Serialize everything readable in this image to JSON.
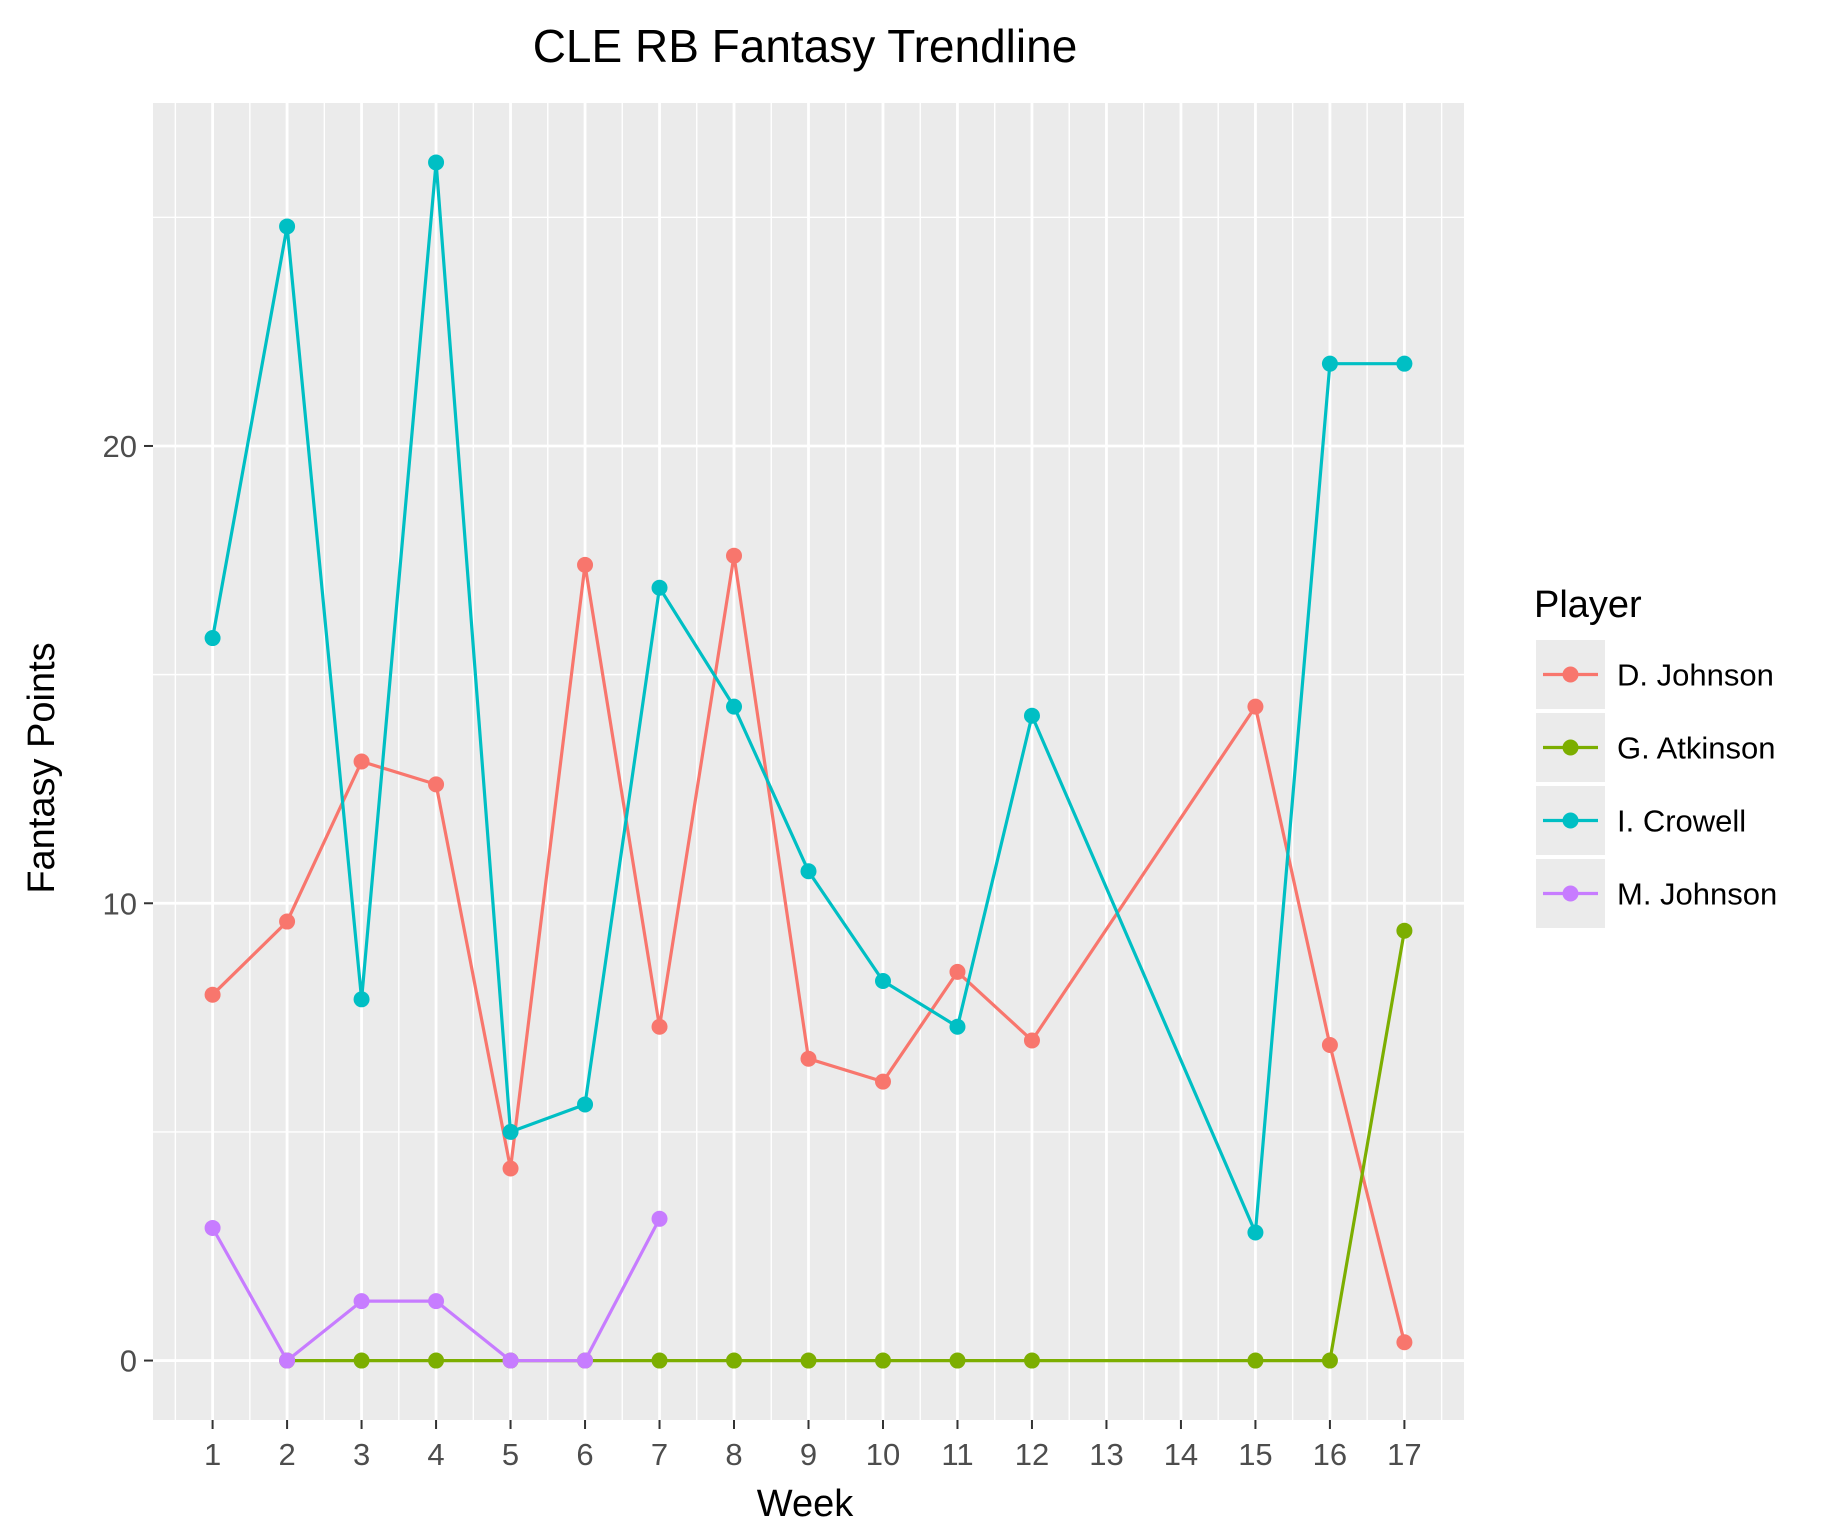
{
  "chart_data": {
    "type": "line",
    "title": "CLE RB Fantasy Trendline",
    "xlabel": "Week",
    "ylabel": "Fantasy Points",
    "xlim": [
      0.2,
      17.8
    ],
    "ylim": [
      -1.3,
      27.5
    ],
    "x_ticks": [
      1,
      2,
      3,
      4,
      5,
      6,
      7,
      8,
      9,
      10,
      11,
      12,
      13,
      14,
      15,
      16,
      17
    ],
    "x_tick_labels": [
      "1",
      "2",
      "3",
      "4",
      "5",
      "6",
      "7",
      "8",
      "9",
      "10",
      "11",
      "12",
      "13",
      "14",
      "15",
      "16",
      "17"
    ],
    "y_ticks": [
      0,
      10,
      20
    ],
    "y_tick_labels": [
      "0",
      "10",
      "20"
    ],
    "y_minor_ticks": [
      5,
      15,
      25
    ],
    "grid": true,
    "panel_background": "#ebebeb",
    "grid_color": "#ffffff",
    "legend": {
      "title": "Player",
      "position": "right"
    },
    "series": [
      {
        "name": "D. Johnson",
        "color": "#F8766D",
        "points": [
          {
            "x": 1,
            "y": 8.0
          },
          {
            "x": 2,
            "y": 9.6
          },
          {
            "x": 3,
            "y": 13.1
          },
          {
            "x": 4,
            "y": 12.6
          },
          {
            "x": 5,
            "y": 4.2
          },
          {
            "x": 6,
            "y": 17.4
          },
          {
            "x": 7,
            "y": 7.3
          },
          {
            "x": 8,
            "y": 17.6
          },
          {
            "x": 9,
            "y": 6.6
          },
          {
            "x": 10,
            "y": 6.1
          },
          {
            "x": 11,
            "y": 8.5
          },
          {
            "x": 12,
            "y": 7.0
          },
          {
            "x": 15,
            "y": 14.3
          },
          {
            "x": 16,
            "y": 6.9
          },
          {
            "x": 17,
            "y": 0.4
          }
        ]
      },
      {
        "name": "G. Atkinson",
        "color": "#7CAE00",
        "points": [
          {
            "x": 2,
            "y": 0
          },
          {
            "x": 3,
            "y": 0
          },
          {
            "x": 4,
            "y": 0
          },
          {
            "x": 5,
            "y": 0
          },
          {
            "x": 6,
            "y": 0
          },
          {
            "x": 7,
            "y": 0
          },
          {
            "x": 8,
            "y": 0
          },
          {
            "x": 9,
            "y": 0
          },
          {
            "x": 10,
            "y": 0
          },
          {
            "x": 11,
            "y": 0
          },
          {
            "x": 12,
            "y": 0
          },
          {
            "x": 15,
            "y": 0
          },
          {
            "x": 16,
            "y": 0
          },
          {
            "x": 17,
            "y": 9.4
          }
        ]
      },
      {
        "name": "I. Crowell",
        "color": "#00BFC4",
        "points": [
          {
            "x": 1,
            "y": 15.8
          },
          {
            "x": 2,
            "y": 24.8
          },
          {
            "x": 3,
            "y": 7.9
          },
          {
            "x": 4,
            "y": 26.2
          },
          {
            "x": 5,
            "y": 5.0
          },
          {
            "x": 6,
            "y": 5.6
          },
          {
            "x": 7,
            "y": 16.9
          },
          {
            "x": 8,
            "y": 14.3
          },
          {
            "x": 9,
            "y": 10.7
          },
          {
            "x": 10,
            "y": 8.3
          },
          {
            "x": 11,
            "y": 7.3
          },
          {
            "x": 12,
            "y": 14.1
          },
          {
            "x": 15,
            "y": 2.8
          },
          {
            "x": 16,
            "y": 21.8
          },
          {
            "x": 17,
            "y": 21.8
          }
        ]
      },
      {
        "name": "M. Johnson",
        "color": "#C77CFF",
        "points": [
          {
            "x": 1,
            "y": 2.9
          },
          {
            "x": 2,
            "y": 0
          },
          {
            "x": 3,
            "y": 1.3
          },
          {
            "x": 4,
            "y": 1.3
          },
          {
            "x": 5,
            "y": 0
          },
          {
            "x": 6,
            "y": 0
          },
          {
            "x": 7,
            "y": 3.1
          }
        ]
      }
    ]
  }
}
